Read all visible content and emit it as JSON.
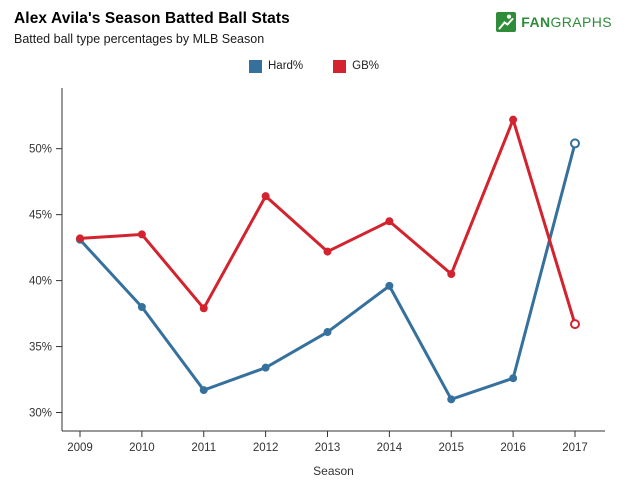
{
  "logo": {
    "fan": "FAN",
    "graphs": "GRAPHS",
    "color": "#2f8c38"
  },
  "chart_data": {
    "type": "line",
    "title": "Alex Avila's Season Batted Ball Stats",
    "subtitle": "Batted ball type percentages by MLB Season",
    "xlabel": "Season",
    "categories": [
      "2009",
      "2010",
      "2011",
      "2012",
      "2013",
      "2014",
      "2015",
      "2016",
      "2017"
    ],
    "series": [
      {
        "name": "Hard%",
        "color": "#36719e",
        "values": [
          43.1,
          38.0,
          31.7,
          33.4,
          36.1,
          39.6,
          31.0,
          32.6,
          50.4
        ],
        "last_point_open": true
      },
      {
        "name": "GB%",
        "color": "#d2232e",
        "values": [
          43.2,
          43.5,
          37.9,
          46.4,
          42.2,
          44.5,
          40.5,
          52.2,
          36.7
        ],
        "last_point_open": true
      }
    ],
    "yticks": [
      30,
      35,
      40,
      45,
      50
    ],
    "ytick_suffix": "%",
    "ylim": [
      28.6,
      54.6
    ],
    "grid": false,
    "legend_position": "top",
    "axis_color": "#333333"
  }
}
